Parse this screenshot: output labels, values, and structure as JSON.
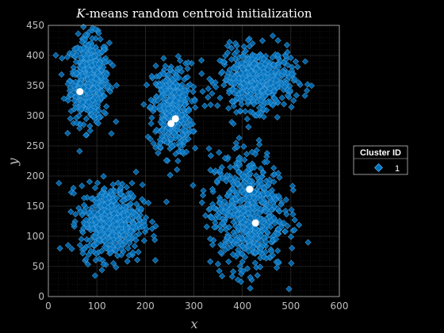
{
  "chart_data": {
    "type": "scatter",
    "title_prefix": "K",
    "title_suffix": "-means random centroid initialization",
    "xlabel": "x",
    "ylabel": "y",
    "xlim": [
      0,
      600
    ],
    "ylim": [
      0,
      450
    ],
    "xticks": [
      0,
      100,
      200,
      300,
      400,
      500,
      600
    ],
    "yticks": [
      0,
      50,
      100,
      150,
      200,
      250,
      300,
      350,
      400,
      450
    ],
    "grid": true,
    "minor_grid": true,
    "legend": {
      "title": "Cluster ID",
      "placement": "right",
      "entries": [
        "1"
      ]
    },
    "series_color": "#0072BD",
    "centroid_color": "#ffffff",
    "clusters": [
      {
        "cx": 85,
        "cy": 360,
        "sx": 20,
        "sy": 35,
        "n": 520
      },
      {
        "cx": 255,
        "cy": 310,
        "sx": 20,
        "sy": 38,
        "n": 420
      },
      {
        "cx": 430,
        "cy": 360,
        "sx": 38,
        "sy": 25,
        "n": 520
      },
      {
        "cx": 130,
        "cy": 125,
        "sx": 32,
        "sy": 30,
        "n": 560
      },
      {
        "cx": 410,
        "cy": 140,
        "sx": 38,
        "sy": 50,
        "n": 620
      }
    ],
    "centroids": [
      {
        "x": 65,
        "y": 340
      },
      {
        "x": 262,
        "y": 295
      },
      {
        "x": 253,
        "y": 287
      },
      {
        "x": 415,
        "y": 178
      },
      {
        "x": 427,
        "y": 122
      }
    ]
  }
}
